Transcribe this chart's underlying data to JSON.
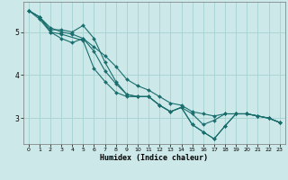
{
  "title": "",
  "xlabel": "Humidex (Indice chaleur)",
  "ylabel": "",
  "bg_color": "#cce8e8",
  "grid_color": "#aad4d4",
  "line_color": "#1a6e6e",
  "xlim": [
    -0.5,
    23.5
  ],
  "ylim": [
    2.4,
    5.7
  ],
  "yticks": [
    3,
    4,
    5
  ],
  "xticks": [
    0,
    1,
    2,
    3,
    4,
    5,
    6,
    7,
    8,
    9,
    10,
    11,
    12,
    13,
    14,
    15,
    16,
    17,
    18,
    19,
    20,
    21,
    22,
    23
  ],
  "lines": [
    {
      "x": [
        0,
        1,
        2,
        3,
        4,
        5,
        6,
        7,
        8,
        9,
        10,
        11,
        12,
        13,
        14,
        15,
        16,
        17,
        18,
        19,
        20,
        21,
        22,
        23
      ],
      "y": [
        5.5,
        5.35,
        5.1,
        5.0,
        4.95,
        4.85,
        4.65,
        4.45,
        4.2,
        3.9,
        3.75,
        3.65,
        3.5,
        3.35,
        3.3,
        3.15,
        3.1,
        3.05,
        3.1,
        3.1,
        3.1,
        3.05,
        3.0,
        2.9
      ]
    },
    {
      "x": [
        0,
        1,
        2,
        3,
        4,
        5,
        6,
        7,
        8,
        9,
        10,
        11,
        12,
        13,
        14,
        15,
        16,
        17,
        18,
        19,
        20,
        21,
        22,
        23
      ],
      "y": [
        5.5,
        5.3,
        5.0,
        4.85,
        4.75,
        4.85,
        4.55,
        4.1,
        3.8,
        3.55,
        3.5,
        3.5,
        3.3,
        3.15,
        3.25,
        2.85,
        2.68,
        2.52,
        2.82,
        3.1,
        3.1,
        3.05,
        3.0,
        2.9
      ]
    },
    {
      "x": [
        0,
        1,
        2,
        3,
        5,
        6,
        7,
        8,
        9,
        10,
        11,
        12,
        13,
        14,
        15,
        16,
        17,
        18,
        19,
        20,
        21,
        22,
        23
      ],
      "y": [
        5.5,
        5.35,
        5.0,
        4.95,
        4.8,
        4.15,
        3.85,
        3.6,
        3.5,
        3.5,
        3.5,
        3.3,
        3.15,
        3.25,
        2.85,
        2.68,
        2.52,
        2.82,
        3.1,
        3.1,
        3.05,
        3.0,
        2.9
      ]
    },
    {
      "x": [
        0,
        1,
        2,
        3,
        4,
        5,
        6,
        7,
        8,
        9,
        10,
        11,
        12,
        13,
        14,
        15,
        16,
        17,
        18,
        19,
        20,
        21,
        22,
        23
      ],
      "y": [
        5.5,
        5.35,
        5.05,
        5.05,
        5.0,
        5.15,
        4.85,
        4.3,
        3.85,
        3.55,
        3.5,
        3.5,
        3.3,
        3.15,
        3.25,
        3.1,
        2.85,
        2.95,
        3.1,
        3.1,
        3.1,
        3.05,
        3.0,
        2.9
      ]
    }
  ]
}
